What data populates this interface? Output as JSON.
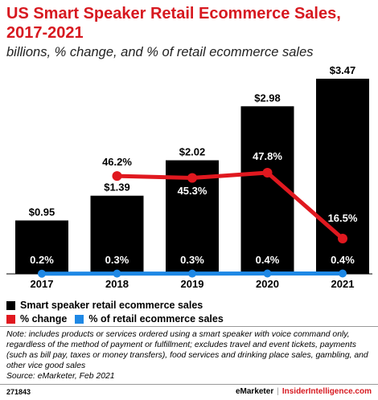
{
  "header": {
    "title": "US Smart Speaker Retail Ecommerce Sales, 2017-2021",
    "subtitle": "billions, % change, and % of retail ecommerce sales"
  },
  "chart_data": {
    "type": "bar",
    "title": "US Smart Speaker Retail Ecommerce Sales, 2017-2021",
    "subtitle": "billions, % change, and % of retail ecommerce sales",
    "categories": [
      "2017",
      "2018",
      "2019",
      "2020",
      "2021"
    ],
    "series": [
      {
        "name": "Smart speaker retail ecommerce sales",
        "type": "bar",
        "values": [
          0.95,
          1.39,
          2.02,
          2.98,
          3.47
        ],
        "labels": [
          "$0.95",
          "$1.39",
          "$2.02",
          "$2.98",
          "$3.47"
        ],
        "color": "#000000"
      },
      {
        "name": "% change",
        "type": "line",
        "values": [
          null,
          46.2,
          45.3,
          47.8,
          16.5
        ],
        "labels": [
          "",
          "46.2%",
          "45.3%",
          "47.8%",
          "16.5%"
        ],
        "color": "#e0181f"
      },
      {
        "name": "% of retail ecommerce sales",
        "type": "line",
        "values": [
          0.2,
          0.3,
          0.3,
          0.4,
          0.4
        ],
        "labels": [
          "0.2%",
          "0.3%",
          "0.3%",
          "0.4%",
          "0.4%"
        ],
        "color": "#1e88e5"
      }
    ],
    "grid": false,
    "legend_position": "bottom-left"
  },
  "note": "Note: includes products or services ordered using a smart speaker with voice command only, regardless of the method of payment or fulfillment; excludes travel and event tickets, payments (such as bill pay, taxes or money transfers), food services and drinking place sales, gambling, and other vice good sales",
  "source": "Source: eMarketer, Feb 2021",
  "footer": {
    "chart_id": "271843",
    "brand": "eMarketer",
    "separator": "|",
    "site": "InsiderIntelligence.com"
  }
}
